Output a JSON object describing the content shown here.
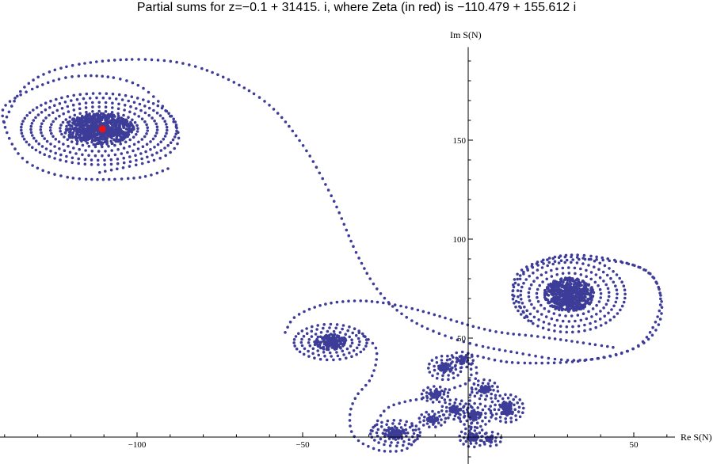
{
  "chart_data": {
    "type": "scatter",
    "title": "Partial sums for z=−0.1 + 31415. i, where Zeta (in red) is −110.479 + 155.612 i",
    "xlabel": "Re S(N)",
    "ylabel": "Im S(N)",
    "xlim": [
      -141,
      65
    ],
    "ylim": [
      -13,
      197
    ],
    "x_ticks": [
      -100,
      -50,
      50
    ],
    "x_tick_labels": [
      "−100",
      "−50",
      "50"
    ],
    "y_ticks": [
      50,
      100,
      150
    ],
    "y_tick_labels": [
      "50",
      "100",
      "150"
    ],
    "minor_tick_step": 10,
    "grid": false,
    "point_color": "#3d3d99",
    "highlight_color": "#ee1111",
    "highlight_point": {
      "label": "Zeta",
      "x": -110.479,
      "y": 155.612
    },
    "spiral_clusters": [
      {
        "cx": -111.5,
        "cy": 155.6,
        "rx": 23.5,
        "ry": 18,
        "rings": 8
      },
      {
        "cx": 30.4,
        "cy": 72,
        "rx": 17,
        "ry": 19,
        "rings": 7
      },
      {
        "cx": -41.6,
        "cy": 48,
        "rx": 11,
        "ry": 9,
        "rings": 5
      },
      {
        "cx": -22,
        "cy": 2,
        "rx": 7.5,
        "ry": 6.5,
        "rings": 4
      },
      {
        "cx": -7,
        "cy": 35,
        "rx": 5,
        "ry": 6,
        "rings": 3
      },
      {
        "cx": -10,
        "cy": 21.6,
        "rx": 4,
        "ry": 4,
        "rings": 3
      },
      {
        "cx": -10.8,
        "cy": 9,
        "rx": 4,
        "ry": 4,
        "rings": 3
      },
      {
        "cx": -2,
        "cy": 39,
        "rx": 3.5,
        "ry": 4,
        "rings": 2
      },
      {
        "cx": 5,
        "cy": 24,
        "rx": 4,
        "ry": 5,
        "rings": 3
      },
      {
        "cx": 11.7,
        "cy": 14.5,
        "rx": 5,
        "ry": 7,
        "rings": 4
      },
      {
        "cx": 2,
        "cy": 11,
        "rx": 5,
        "ry": 6,
        "rings": 3
      },
      {
        "cx": -4,
        "cy": 14,
        "rx": 4,
        "ry": 5,
        "rings": 3
      },
      {
        "cx": 1.4,
        "cy": 0,
        "rx": 4,
        "ry": 5,
        "rings": 3
      },
      {
        "cx": 7,
        "cy": -1,
        "rx": 3,
        "ry": 3.5,
        "rings": 2
      }
    ],
    "connecting_paths": [
      [
        [
          -111.5,
          133.6
        ],
        [
          -91.6,
          142
        ],
        [
          -88,
          156
        ],
        [
          -100,
          178
        ],
        [
          -120,
          182
        ],
        [
          -138,
          170
        ],
        [
          -140.2,
          158.8
        ],
        [
          -134,
          140
        ],
        [
          -120,
          131
        ],
        [
          -100,
          131
        ],
        [
          -90,
          136
        ]
      ],
      [
        [
          -140.2,
          158.8
        ],
        [
          -134,
          176.8
        ],
        [
          -122,
          186.8
        ],
        [
          -100.7,
          190.8
        ],
        [
          -81.6,
          186.8
        ],
        [
          -62.4,
          170.8
        ],
        [
          -50.5,
          148.8
        ],
        [
          -41,
          120.8
        ],
        [
          -33.7,
          92.8
        ],
        [
          -26.6,
          72.8
        ],
        [
          -17,
          58.8
        ],
        [
          -2.6,
          48.8
        ],
        [
          14,
          42.8
        ],
        [
          33,
          38.8
        ],
        [
          50,
          44.8
        ],
        [
          57.2,
          60.8
        ],
        [
          57.2,
          76.8
        ],
        [
          50,
          86.8
        ],
        [
          30.9,
          92
        ],
        [
          16.5,
          84.8
        ],
        [
          13.6,
          72.8
        ],
        [
          18,
          60
        ]
      ],
      [
        [
          -55.3,
          52.8
        ],
        [
          -52.2,
          60.8
        ],
        [
          -44,
          66.8
        ],
        [
          -34.5,
          68.8
        ],
        [
          -26.6,
          68
        ],
        [
          -18.7,
          65.6
        ],
        [
          -12.2,
          62.8
        ],
        [
          -4.3,
          58.8
        ],
        [
          2.2,
          55.6
        ],
        [
          10,
          52.8
        ],
        [
          21,
          50.8
        ],
        [
          33,
          48
        ],
        [
          45,
          45
        ]
      ],
      [
        [
          -0.2,
          38.8
        ],
        [
          0.5,
          41.6
        ],
        [
          14,
          37.6
        ],
        [
          35.6,
          38.8
        ],
        [
          52.4,
          46.8
        ],
        [
          58.4,
          62.8
        ],
        [
          54.8,
          82.8
        ],
        [
          40.4,
          89.5
        ],
        [
          23.7,
          88
        ],
        [
          16,
          80.8
        ],
        [
          15.5,
          66.8
        ],
        [
          20,
          56.8
        ]
      ],
      [
        [
          -33,
          52.8
        ],
        [
          -28.2,
          46
        ],
        [
          -27.8,
          38
        ],
        [
          -29.7,
          28.8
        ],
        [
          -33.7,
          20.8
        ],
        [
          -35.6,
          12.8
        ],
        [
          -35.4,
          3.6
        ],
        [
          -33,
          -2
        ],
        [
          -28.2,
          -6
        ],
        [
          -24.2,
          -7.2
        ],
        [
          -18.7,
          -6
        ],
        [
          -15.3,
          0.8
        ],
        [
          -17,
          6
        ]
      ],
      [
        [
          -29,
          3
        ],
        [
          -24.9,
          14
        ],
        [
          -18.7,
          18
        ],
        [
          -12.2,
          20
        ],
        [
          -4.3,
          24.8
        ],
        [
          -0.2,
          27.6
        ],
        [
          1,
          32.8
        ],
        [
          -0.2,
          38.8
        ]
      ],
      [
        [
          -0.2,
          38.8
        ],
        [
          2.5,
          35
        ],
        [
          2,
          28
        ],
        [
          0.5,
          20
        ],
        [
          1.2,
          12
        ],
        [
          0.8,
          4
        ],
        [
          1.4,
          0
        ]
      ]
    ]
  }
}
